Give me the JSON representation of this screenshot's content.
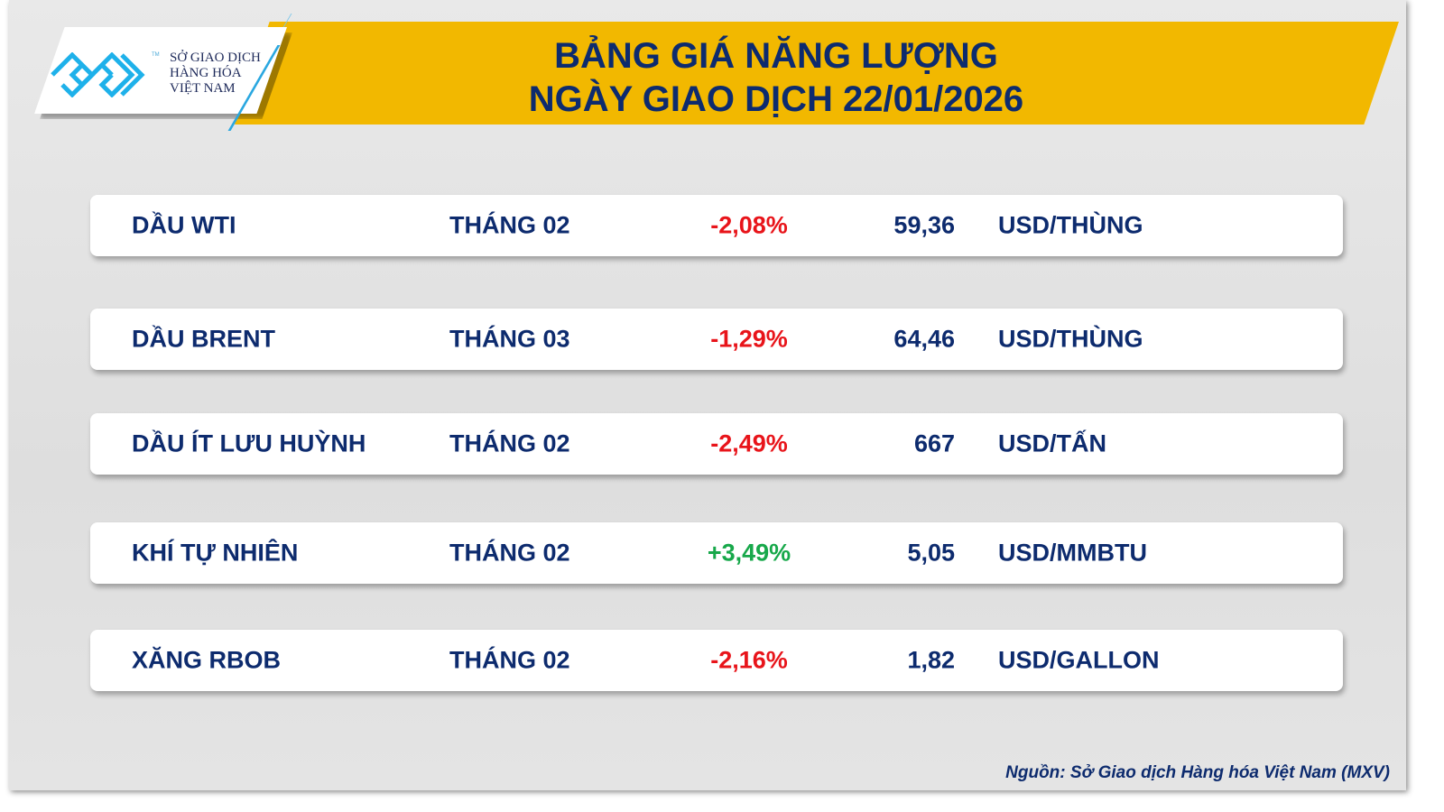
{
  "header": {
    "title_line1": "BẢNG GIÁ NĂNG LƯỢNG",
    "title_line2": "NGÀY GIAO DỊCH 22/01/2026"
  },
  "logo": {
    "line1": "SỞ GIAO DỊCH",
    "line2": "HÀNG HÓA",
    "line3": "VIỆT NAM",
    "tm": "TM"
  },
  "rows": [
    {
      "name": "DẦU WTI",
      "month": "THÁNG 02",
      "change": "-2,08%",
      "price": "59,36",
      "unit": "USD/THÙNG",
      "direction": "down"
    },
    {
      "name": "DẦU BRENT",
      "month": "THÁNG 03",
      "change": "-1,29%",
      "price": "64,46",
      "unit": "USD/THÙNG",
      "direction": "down"
    },
    {
      "name": "DẦU ÍT LƯU HUỲNH",
      "month": "THÁNG 02",
      "change": "-2,49%",
      "price": "667",
      "unit": "USD/TẤN",
      "direction": "down"
    },
    {
      "name": "KHÍ TỰ NHIÊN",
      "month": "THÁNG 02",
      "change": "+3,49%",
      "price": "5,05",
      "unit": "USD/MMBTU",
      "direction": "up"
    },
    {
      "name": "XĂNG RBOB",
      "month": "THÁNG 02",
      "change": "-2,16%",
      "price": "1,82",
      "unit": "USD/GALLON",
      "direction": "down"
    }
  ],
  "footer": {
    "source": "Nguồn: Sở Giao dịch Hàng hóa Việt Nam (MXV)"
  },
  "colors": {
    "banner": "#f2b800",
    "navy": "#0d2b6e",
    "negative": "#e8141a",
    "positive": "#17a84a",
    "logo_blue": "#1eb1ea"
  }
}
